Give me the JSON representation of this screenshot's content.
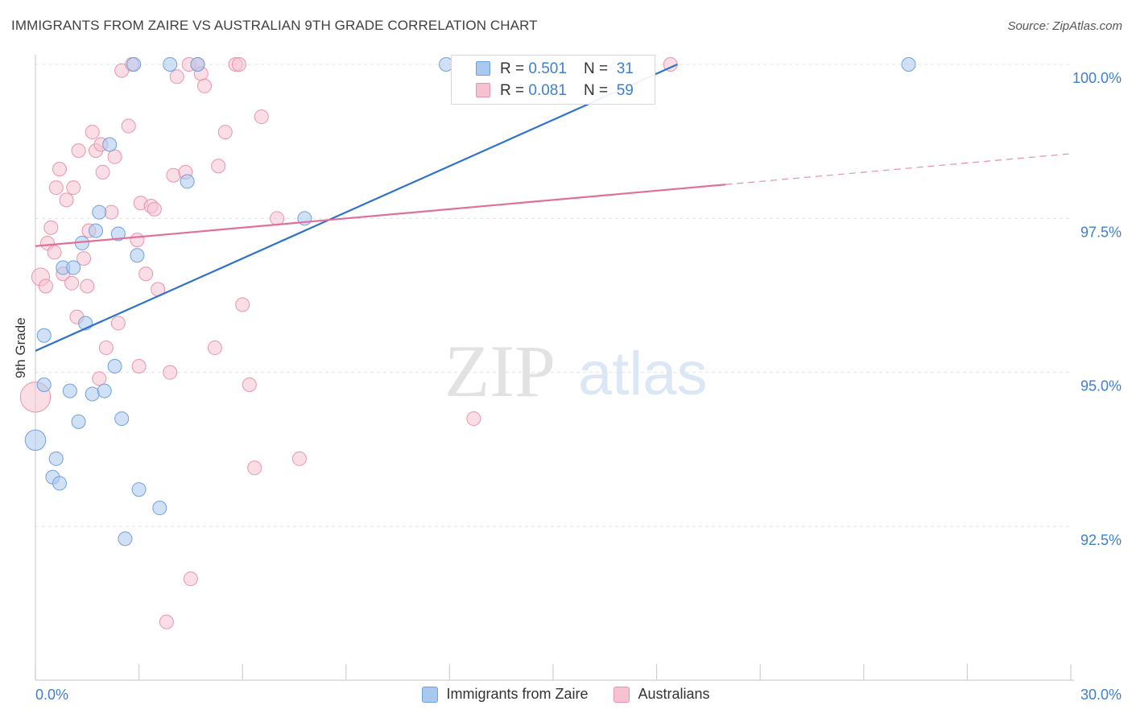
{
  "title": "IMMIGRANTS FROM ZAIRE VS AUSTRALIAN 9TH GRADE CORRELATION CHART",
  "source": "Source: ZipAtlas.com",
  "watermark": {
    "zip": "ZIP",
    "atlas": "atlas"
  },
  "stats": [
    {
      "r_label": "R = ",
      "r_value": "0.501",
      "n_label": "N = ",
      "n_value": "31",
      "color": "#a9c8ef",
      "border": "#6fa0dd"
    },
    {
      "r_label": "R = ",
      "r_value": "0.081",
      "n_label": "N = ",
      "n_value": "59",
      "color": "#f6c2d2",
      "border": "#ea93ae"
    }
  ],
  "chart_data": {
    "type": "scatter",
    "title": "IMMIGRANTS FROM ZAIRE VS AUSTRALIAN 9TH GRADE CORRELATION CHART",
    "xlabel": "",
    "ylabel": "9th Grade",
    "xlim": [
      0.0,
      30.0
    ],
    "ylim": [
      90.0,
      100.3
    ],
    "x_tick_labels": [
      "0.0%",
      "30.0%"
    ],
    "y_ticks": [
      92.5,
      95.0,
      97.5,
      100.0
    ],
    "y_tick_labels": [
      "92.5%",
      "95.0%",
      "97.5%",
      "100.0%"
    ],
    "grid": true,
    "legend_position": "bottom",
    "series": [
      {
        "name": "Immigrants from Zaire",
        "color": "#a9c8ef",
        "edge": "#6fa0dd",
        "line_color": "#2e72cc",
        "trend": {
          "x": [
            0.0,
            18.6
          ],
          "y": [
            95.35,
            100.0
          ]
        },
        "points": [
          {
            "x": 0.0,
            "y": 93.9,
            "s": 1.5
          },
          {
            "x": 0.25,
            "y": 95.6,
            "s": 1
          },
          {
            "x": 0.25,
            "y": 94.8,
            "s": 1
          },
          {
            "x": 0.5,
            "y": 93.3,
            "s": 1
          },
          {
            "x": 0.6,
            "y": 93.6,
            "s": 1
          },
          {
            "x": 0.7,
            "y": 93.2,
            "s": 1
          },
          {
            "x": 0.8,
            "y": 96.7,
            "s": 1
          },
          {
            "x": 1.0,
            "y": 94.7,
            "s": 1
          },
          {
            "x": 1.1,
            "y": 96.7,
            "s": 1
          },
          {
            "x": 1.25,
            "y": 94.2,
            "s": 1
          },
          {
            "x": 1.35,
            "y": 97.1,
            "s": 1
          },
          {
            "x": 1.45,
            "y": 95.8,
            "s": 1
          },
          {
            "x": 1.65,
            "y": 94.65,
            "s": 1
          },
          {
            "x": 1.75,
            "y": 97.3,
            "s": 1
          },
          {
            "x": 1.85,
            "y": 97.6,
            "s": 1
          },
          {
            "x": 2.0,
            "y": 94.7,
            "s": 1
          },
          {
            "x": 2.15,
            "y": 98.7,
            "s": 1
          },
          {
            "x": 2.3,
            "y": 95.1,
            "s": 1
          },
          {
            "x": 2.4,
            "y": 97.25,
            "s": 1
          },
          {
            "x": 2.5,
            "y": 94.25,
            "s": 1
          },
          {
            "x": 2.6,
            "y": 92.3,
            "s": 1
          },
          {
            "x": 2.85,
            "y": 100.0,
            "s": 1
          },
          {
            "x": 2.95,
            "y": 96.9,
            "s": 1
          },
          {
            "x": 3.0,
            "y": 93.1,
            "s": 1
          },
          {
            "x": 3.6,
            "y": 92.8,
            "s": 1
          },
          {
            "x": 3.9,
            "y": 100.0,
            "s": 1
          },
          {
            "x": 4.4,
            "y": 98.1,
            "s": 1
          },
          {
            "x": 4.7,
            "y": 100.0,
            "s": 1
          },
          {
            "x": 7.8,
            "y": 97.5,
            "s": 1
          },
          {
            "x": 11.9,
            "y": 100.0,
            "s": 1
          },
          {
            "x": 25.3,
            "y": 100.0,
            "s": 1
          }
        ]
      },
      {
        "name": "Australians",
        "color": "#f6c2d2",
        "edge": "#ea93ae",
        "line_color": "#e0709a",
        "trend": {
          "x": [
            0.0,
            20.0
          ],
          "y": [
            97.05,
            98.05
          ]
        },
        "trend_extension": {
          "x": [
            20.0,
            30.0
          ],
          "y": [
            98.05,
            98.55
          ]
        },
        "points": [
          {
            "x": 0.0,
            "y": 94.6,
            "s": 2.2
          },
          {
            "x": 0.15,
            "y": 96.55,
            "s": 1.3
          },
          {
            "x": 0.3,
            "y": 96.4,
            "s": 1
          },
          {
            "x": 0.35,
            "y": 97.1,
            "s": 1
          },
          {
            "x": 0.45,
            "y": 97.35,
            "s": 1
          },
          {
            "x": 0.55,
            "y": 96.95,
            "s": 1
          },
          {
            "x": 0.6,
            "y": 98.0,
            "s": 1
          },
          {
            "x": 0.7,
            "y": 98.3,
            "s": 1
          },
          {
            "x": 0.8,
            "y": 96.6,
            "s": 1
          },
          {
            "x": 0.9,
            "y": 97.8,
            "s": 1
          },
          {
            "x": 1.05,
            "y": 96.45,
            "s": 1
          },
          {
            "x": 1.1,
            "y": 98.0,
            "s": 1
          },
          {
            "x": 1.2,
            "y": 95.9,
            "s": 1
          },
          {
            "x": 1.25,
            "y": 98.6,
            "s": 1
          },
          {
            "x": 1.4,
            "y": 96.85,
            "s": 1
          },
          {
            "x": 1.5,
            "y": 96.4,
            "s": 1
          },
          {
            "x": 1.55,
            "y": 97.3,
            "s": 1
          },
          {
            "x": 1.65,
            "y": 98.9,
            "s": 1
          },
          {
            "x": 1.75,
            "y": 98.6,
            "s": 1
          },
          {
            "x": 1.85,
            "y": 94.9,
            "s": 1
          },
          {
            "x": 1.9,
            "y": 98.7,
            "s": 1
          },
          {
            "x": 1.95,
            "y": 98.25,
            "s": 1
          },
          {
            "x": 2.05,
            "y": 95.4,
            "s": 1
          },
          {
            "x": 2.2,
            "y": 97.6,
            "s": 1
          },
          {
            "x": 2.3,
            "y": 98.5,
            "s": 1
          },
          {
            "x": 2.4,
            "y": 95.8,
            "s": 1
          },
          {
            "x": 2.5,
            "y": 99.9,
            "s": 1
          },
          {
            "x": 2.7,
            "y": 99.0,
            "s": 1
          },
          {
            "x": 2.8,
            "y": 100.0,
            "s": 1
          },
          {
            "x": 2.95,
            "y": 97.15,
            "s": 1
          },
          {
            "x": 3.0,
            "y": 95.1,
            "s": 1
          },
          {
            "x": 3.05,
            "y": 97.75,
            "s": 1
          },
          {
            "x": 3.2,
            "y": 96.6,
            "s": 1
          },
          {
            "x": 3.35,
            "y": 97.7,
            "s": 1
          },
          {
            "x": 3.45,
            "y": 97.65,
            "s": 1
          },
          {
            "x": 3.55,
            "y": 96.35,
            "s": 1
          },
          {
            "x": 3.8,
            "y": 90.95,
            "s": 1
          },
          {
            "x": 3.9,
            "y": 95.0,
            "s": 1
          },
          {
            "x": 4.0,
            "y": 98.2,
            "s": 1
          },
          {
            "x": 4.1,
            "y": 99.8,
            "s": 1
          },
          {
            "x": 4.35,
            "y": 98.25,
            "s": 1
          },
          {
            "x": 4.45,
            "y": 100.0,
            "s": 1
          },
          {
            "x": 4.5,
            "y": 91.65,
            "s": 1
          },
          {
            "x": 4.7,
            "y": 100.0,
            "s": 1
          },
          {
            "x": 4.8,
            "y": 99.85,
            "s": 1
          },
          {
            "x": 4.9,
            "y": 99.65,
            "s": 1
          },
          {
            "x": 5.2,
            "y": 95.4,
            "s": 1
          },
          {
            "x": 5.3,
            "y": 98.35,
            "s": 1
          },
          {
            "x": 5.5,
            "y": 98.9,
            "s": 1
          },
          {
            "x": 5.8,
            "y": 100.0,
            "s": 1
          },
          {
            "x": 5.9,
            "y": 100.0,
            "s": 1
          },
          {
            "x": 6.0,
            "y": 96.1,
            "s": 1
          },
          {
            "x": 6.2,
            "y": 94.8,
            "s": 1
          },
          {
            "x": 6.35,
            "y": 93.45,
            "s": 1
          },
          {
            "x": 6.55,
            "y": 99.15,
            "s": 1
          },
          {
            "x": 7.0,
            "y": 97.5,
            "s": 1
          },
          {
            "x": 7.65,
            "y": 93.6,
            "s": 1
          },
          {
            "x": 12.7,
            "y": 94.25,
            "s": 1
          },
          {
            "x": 18.4,
            "y": 100.0,
            "s": 1
          }
        ]
      }
    ]
  }
}
